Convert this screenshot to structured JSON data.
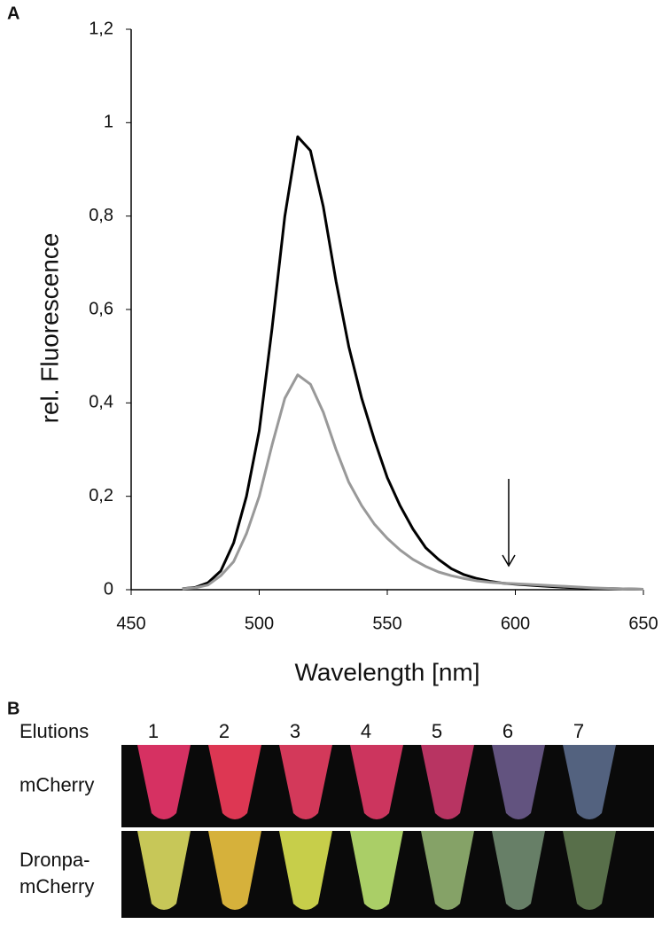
{
  "panel_labels": [
    "A",
    "B"
  ],
  "chart_data": {
    "type": "line",
    "x_label": "Wavelength [nm]",
    "y_label": "rel. Fluorescence",
    "x": [
      470,
      475,
      480,
      485,
      490,
      495,
      500,
      505,
      510,
      515,
      520,
      525,
      530,
      535,
      540,
      545,
      550,
      555,
      560,
      565,
      570,
      575,
      580,
      585,
      590,
      595,
      600,
      610,
      620,
      630,
      640,
      650
    ],
    "series": [
      {
        "color": "#000000",
        "values": [
          0.002,
          0.005,
          0.015,
          0.04,
          0.1,
          0.2,
          0.34,
          0.56,
          0.8,
          0.97,
          0.94,
          0.82,
          0.66,
          0.52,
          0.41,
          0.32,
          0.24,
          0.18,
          0.13,
          0.09,
          0.065,
          0.045,
          0.032,
          0.024,
          0.018,
          0.014,
          0.012,
          0.008,
          0.005,
          0.003,
          0.002,
          0.001
        ]
      },
      {
        "color": "#999999",
        "values": [
          0.002,
          0.004,
          0.01,
          0.03,
          0.06,
          0.12,
          0.2,
          0.31,
          0.41,
          0.46,
          0.44,
          0.38,
          0.3,
          0.23,
          0.18,
          0.14,
          0.11,
          0.085,
          0.065,
          0.05,
          0.038,
          0.03,
          0.024,
          0.019,
          0.016,
          0.014,
          0.013,
          0.01,
          0.007,
          0.004,
          0.002,
          0.001
        ]
      }
    ],
    "xlim": [
      450,
      650
    ],
    "xticks": [
      450,
      500,
      550,
      600,
      650
    ],
    "ylim": [
      0,
      1.2
    ],
    "yticks": [
      0,
      {
        "value": 0.2,
        "label": "0,2"
      },
      {
        "value": 0.4,
        "label": "0,4"
      },
      {
        "value": 0.6,
        "label": "0,6"
      },
      {
        "value": 0.8,
        "label": "0,8"
      },
      1,
      {
        "value": 1.2,
        "label": "1,2"
      }
    ],
    "grid": false
  },
  "tubes": {
    "header": "Elutions",
    "lanes": [
      "1",
      "2",
      "3",
      "4",
      "5",
      "6",
      "7"
    ],
    "rows": [
      {
        "label": [
          "mCherry"
        ],
        "colors": [
          "#e8356a",
          "#f03c5a",
          "#e53e62",
          "#dd3a66",
          "#c8386a",
          "#6a5a8a",
          "#5a6a8a"
        ]
      },
      {
        "label": [
          "Dronpa-",
          "mCherry"
        ],
        "colors": [
          "#d8d860",
          "#e8c040",
          "#d8e050",
          "#b8e070",
          "#90b070",
          "#708a70",
          "#607850"
        ]
      }
    ]
  }
}
